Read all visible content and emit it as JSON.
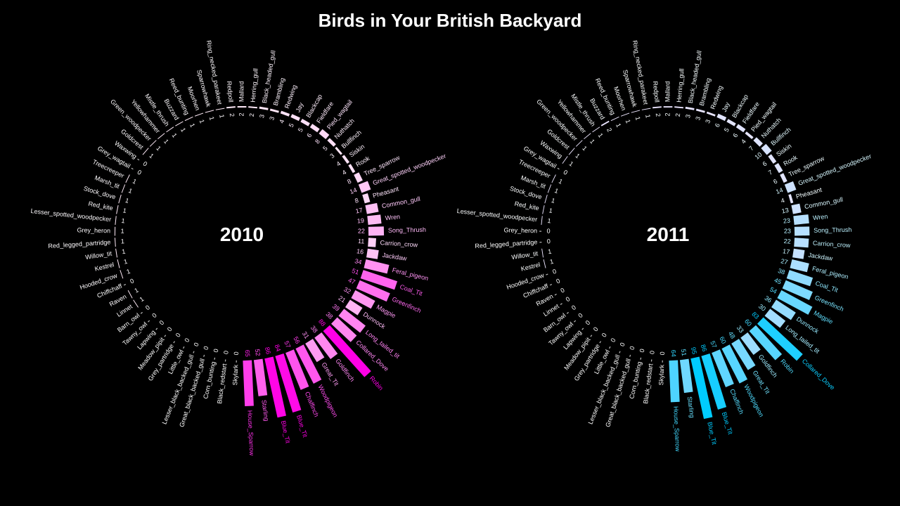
{
  "title": "Birds in Your British Backyard",
  "chart_data": [
    {
      "type": "radial-bar",
      "title": "2010",
      "color_scale": [
        "#ffeef8",
        "#ff00e6"
      ],
      "categories": [
        "House_Sparrow",
        "Starling",
        "Blue_Tit",
        "Blue_Tit",
        "Chaffinch",
        "Woodpigeon",
        "Great_Tit",
        "Goldfinch",
        "Robin",
        "Collared_Dove",
        "Long_tailed_tit",
        "Dunnock",
        "Magpie",
        "Greenfinch",
        "Coal_Tit",
        "Feral_pigeon",
        "Jackdaw",
        "Carrion_crow",
        "Song_Thrush",
        "Wren",
        "Common_gull",
        "Pheasant",
        "Great_spotted_woodpecker",
        "Tree_sparrow",
        "Rook",
        "Siskin",
        "Bullfinch",
        "Nuthatch",
        "Pied_wagtail",
        "Fieldfare",
        "Blackcap",
        "Jay",
        "Redwing",
        "Brambling",
        "Black_headed_gull",
        "Herring_gull",
        "Mallard",
        "Redpoll",
        "Ring_necked_parakeet",
        "Sparrowhawk",
        "Moorhen",
        "Reed_bunting",
        "Buzzard",
        "Mistle_thrush",
        "Yellowhammer",
        "Green_woodpecker",
        "Goldcrest",
        "Waxwing",
        "Grey_wagtail",
        "Treecreeper",
        "Marsh_tit",
        "Stock_dove",
        "Red_kite",
        "Lesser_spotted_woodpecker",
        "Grey_heron",
        "Red_legged_partridge",
        "Willow_tit",
        "Kestrel",
        "Hooded_crow",
        "Chiffchaff",
        "Raven",
        "Linnet",
        "Barn_owl",
        "Tawny_owl",
        "Lapwing",
        "Meadow_pipit",
        "Grey_partridge",
        "Little_owl",
        "Lesser_black_backed_gull",
        "Great_black_backed_gull",
        "Corn_bunting",
        "Black_redstart",
        "Skylark"
      ],
      "values": [
        65,
        52,
        86,
        84,
        57,
        56,
        31,
        38,
        88,
        38,
        39,
        21,
        32,
        47,
        51,
        34,
        16,
        11,
        22,
        19,
        17,
        8,
        14,
        8,
        4,
        4,
        3,
        5,
        8,
        6,
        5,
        5,
        4,
        3,
        3,
        2,
        2,
        2,
        1,
        1,
        1,
        1,
        1,
        1,
        1,
        1,
        1,
        0,
        0,
        1,
        1,
        1,
        1,
        1,
        1,
        1,
        1,
        1,
        1,
        0,
        1,
        1,
        0,
        0,
        0,
        0,
        0,
        0,
        0,
        0,
        0,
        0,
        0
      ]
    },
    {
      "type": "radial-bar",
      "title": "2011",
      "color_scale": [
        "#f0e6ff",
        "#00ccff"
      ],
      "categories": [
        "House_Sparrow",
        "Starling",
        "Blue_Tit",
        "Blue_Tit",
        "Chaffinch",
        "Woodpigeon",
        "Great_Tit",
        "Goldfinch",
        "Robin",
        "Collared_Dove",
        "Long_tailed_tit",
        "Dunnock",
        "Magpie",
        "Greenfinch",
        "Coal_Tit",
        "Feral_pigeon",
        "Jackdaw",
        "Carrion_crow",
        "Song_Thrush",
        "Wren",
        "Common_gull",
        "Pheasant",
        "Great_spotted_woodpecker",
        "Tree_sparrow",
        "Rook",
        "Siskin",
        "Bullfinch",
        "Nuthatch",
        "Pied_wagtail",
        "Fieldfare",
        "Blackcap",
        "Jay",
        "Redwing",
        "Brambling",
        "Black_headed_gull",
        "Herring_gull",
        "Mallard",
        "Redpoll",
        "Ring_necked_parakeet",
        "Sparrowhawk",
        "Moorhen",
        "Reed_bunting",
        "Buzzard",
        "Mistle_thrush",
        "Yellowhammer",
        "Green_woodpecker",
        "Goldcrest",
        "Waxwing",
        "Grey_wagtail",
        "Treecreeper",
        "Marsh_tit",
        "Stock_dove",
        "Red_kite",
        "Lesser_spotted_woodpecker",
        "Grey_heron",
        "Red_legged_partridge",
        "Willow_tit",
        "Kestrel",
        "Hooded_crow",
        "Chiffchaff",
        "Raven",
        "Linnet",
        "Barn_owl",
        "Tawny_owl",
        "Lapwing",
        "Meadow_pipit",
        "Grey_partridge",
        "Little_owl",
        "Lesser_black_backed_gull",
        "Great_black_backed_gull",
        "Corn_bunting",
        "Black_redstart",
        "Skylark"
      ],
      "values": [
        64,
        51,
        95,
        86,
        57,
        60,
        48,
        33,
        60,
        83,
        30,
        36,
        54,
        45,
        38,
        27,
        17,
        22,
        23,
        23,
        13,
        4,
        14,
        6,
        7,
        6,
        10,
        7,
        4,
        6,
        5,
        6,
        3,
        3,
        3,
        2,
        2,
        2,
        1,
        1,
        1,
        1,
        2,
        1,
        1,
        1,
        1,
        1,
        0,
        1,
        1,
        1,
        1,
        1,
        0,
        0,
        1,
        1,
        0,
        0,
        0,
        0,
        0,
        0,
        0,
        0,
        0,
        0,
        0,
        0,
        0,
        0,
        0
      ]
    }
  ]
}
